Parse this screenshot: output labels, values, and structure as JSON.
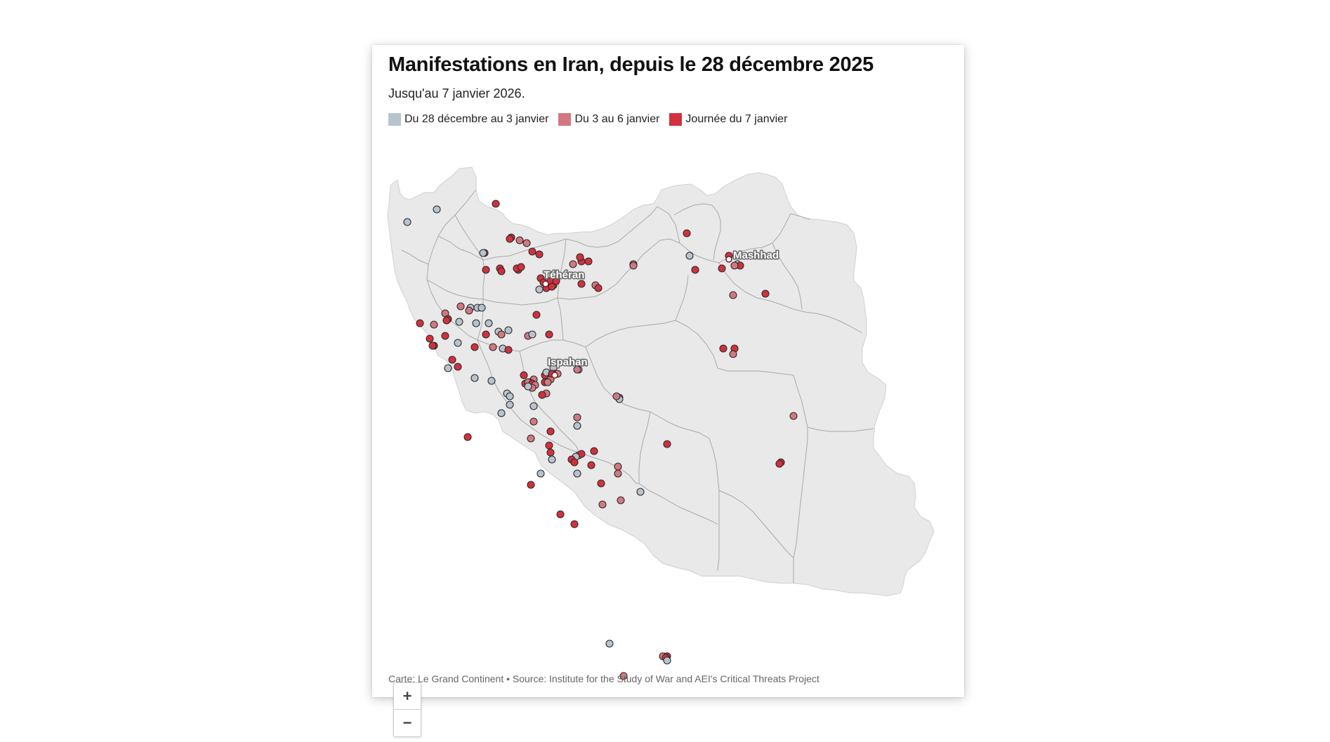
{
  "header": {
    "title": "Manifestations en Iran, depuis le 28 décembre 2025",
    "subtitle": "Jusqu'au 7 janvier 2026."
  },
  "legend": {
    "items": [
      {
        "label": "Du 28 décembre au 3 janvier",
        "color": "#b7c3cd"
      },
      {
        "label": "Du 3 au 6 janvier",
        "color": "#d27880"
      },
      {
        "label": "Journée du 7 janvier",
        "color": "#d2303c"
      }
    ]
  },
  "map": {
    "land_color": "#e9e9e9",
    "border_color": "#a8a8a8",
    "cities": [
      {
        "name": "Téhéran"
      },
      {
        "name": "Mashhad"
      },
      {
        "name": "Ispahan"
      }
    ],
    "periods": {
      "a": "Du 28 décembre au 3 janvier",
      "b": "Du 3 au 6 janvier",
      "c": "Journée du 7 janvier"
    }
  },
  "zoom": {
    "in_label": "+",
    "out_label": "−"
  },
  "footer": {
    "credit": "Carte: Le Grand Continent • Source: Institute for the Study of War and AEI's Critical Threats Project"
  }
}
